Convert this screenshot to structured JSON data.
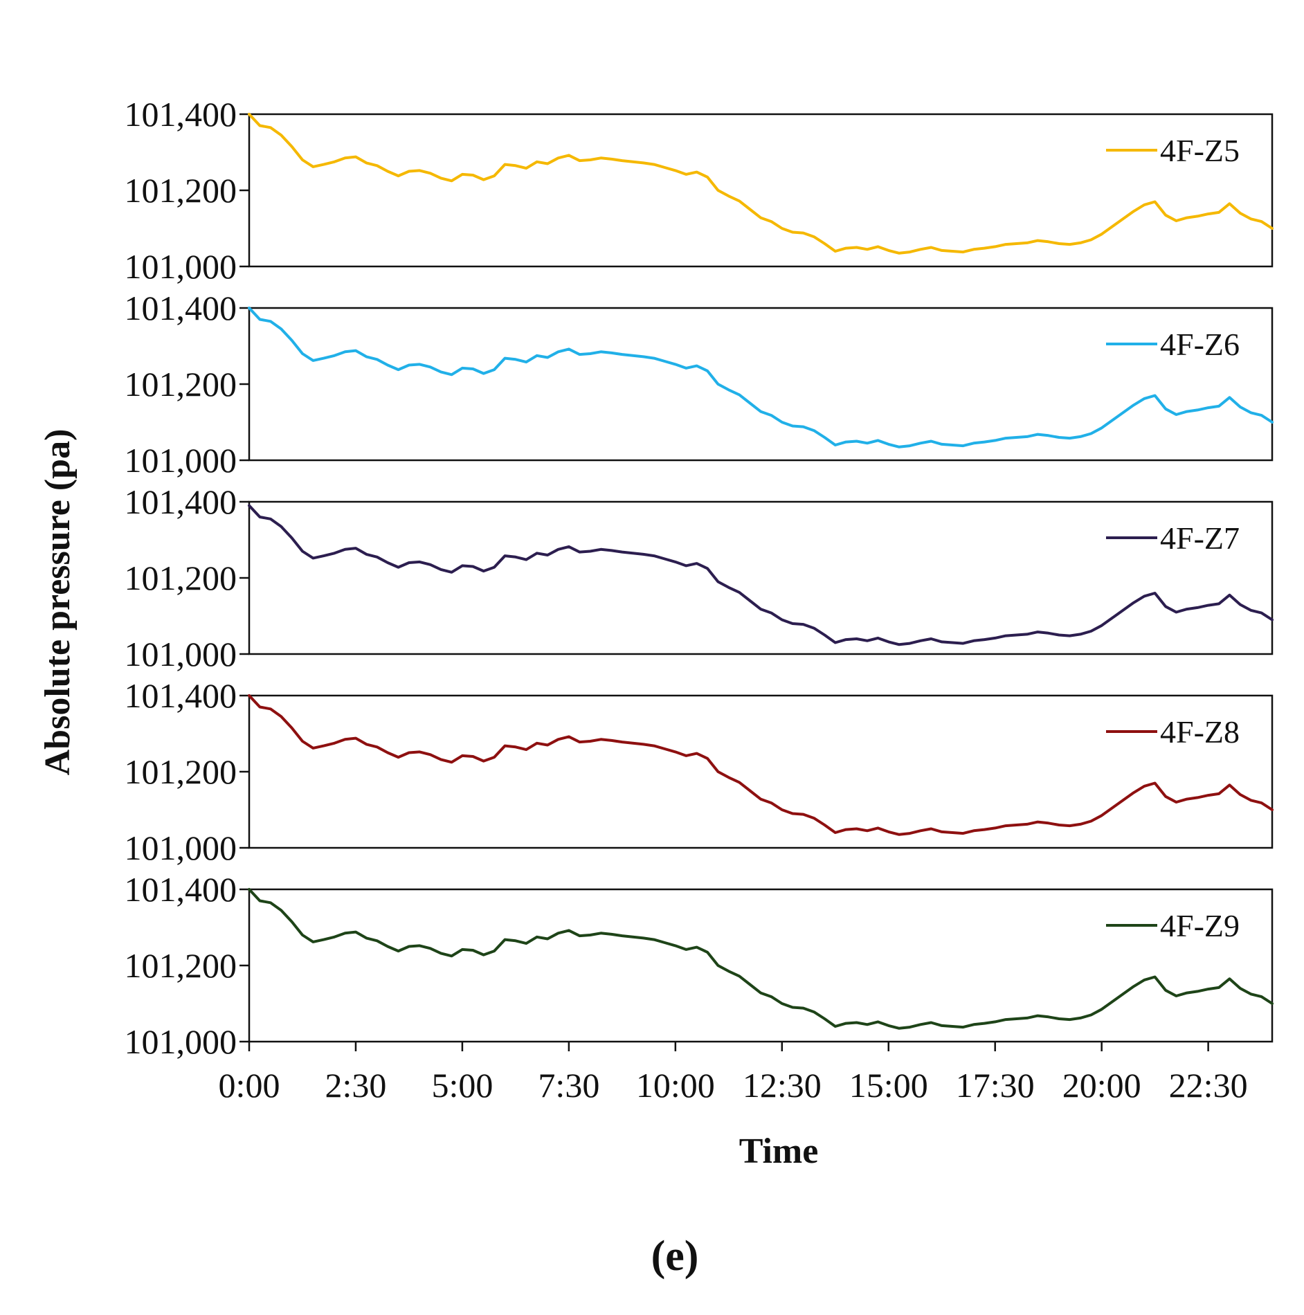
{
  "figure_label": "(e)",
  "chart_data": {
    "type": "line",
    "layout": "stacked-panels",
    "ylabel": "Absolute pressure (pa)",
    "xlabel": "Time",
    "x_unit": "hours",
    "xlim": [
      0,
      24
    ],
    "x_tick_values": [
      0,
      2.5,
      5,
      7.5,
      10,
      12.5,
      15,
      17.5,
      20,
      22.5
    ],
    "x_tick_labels": [
      "0:00",
      "2:30",
      "5:00",
      "7:30",
      "10:00",
      "12:30",
      "15:00",
      "17:30",
      "20:00",
      "22:30"
    ],
    "ylim": [
      101000,
      101400
    ],
    "y_tick_values": [
      101000,
      101200,
      101400
    ],
    "y_tick_labels": [
      "101,000",
      "101,200",
      "101,400"
    ],
    "legend_position": "top-right",
    "grid": false,
    "x": [
      0,
      0.25,
      0.5,
      0.75,
      1,
      1.25,
      1.5,
      1.75,
      2,
      2.25,
      2.5,
      2.75,
      3,
      3.25,
      3.5,
      3.75,
      4,
      4.25,
      4.5,
      4.75,
      5,
      5.25,
      5.5,
      5.75,
      6,
      6.25,
      6.5,
      6.75,
      7,
      7.25,
      7.5,
      7.75,
      8,
      8.25,
      8.5,
      8.75,
      9,
      9.25,
      9.5,
      9.75,
      10,
      10.25,
      10.5,
      10.75,
      11,
      11.25,
      11.5,
      11.75,
      12,
      12.25,
      12.5,
      12.75,
      13,
      13.25,
      13.5,
      13.75,
      14,
      14.25,
      14.5,
      14.75,
      15,
      15.25,
      15.5,
      15.75,
      16,
      16.25,
      16.5,
      16.75,
      17,
      17.25,
      17.5,
      17.75,
      18,
      18.25,
      18.5,
      18.75,
      19,
      19.25,
      19.5,
      19.75,
      20,
      20.25,
      20.5,
      20.75,
      21,
      21.25,
      21.5,
      21.75,
      22,
      22.25,
      22.5,
      22.75,
      23,
      23.25,
      23.5,
      23.75,
      24
    ],
    "series": [
      {
        "name": "4F-Z5",
        "color": "#F5B800",
        "values": [
          101400,
          101370,
          101365,
          101345,
          101315,
          101280,
          101262,
          101268,
          101275,
          101285,
          101288,
          101272,
          101265,
          101250,
          101238,
          101250,
          101252,
          101245,
          101232,
          101225,
          101242,
          101240,
          101228,
          101238,
          101268,
          101265,
          101258,
          101275,
          101270,
          101285,
          101292,
          101278,
          101280,
          101285,
          101282,
          101278,
          101275,
          101272,
          101268,
          101260,
          101252,
          101242,
          101248,
          101235,
          101200,
          101185,
          101172,
          101150,
          101128,
          101118,
          101100,
          101090,
          101088,
          101078,
          101060,
          101040,
          101048,
          101050,
          101045,
          101052,
          101042,
          101035,
          101038,
          101045,
          101050,
          101042,
          101040,
          101038,
          101045,
          101048,
          101052,
          101058,
          101060,
          101062,
          101068,
          101065,
          101060,
          101058,
          101062,
          101070,
          101085,
          101105,
          101125,
          101145,
          101162,
          101170,
          101135,
          101120,
          101128,
          101132,
          101138,
          101142,
          101165,
          101140,
          101125,
          101118,
          101100
        ]
      },
      {
        "name": "4F-Z6",
        "color": "#21B0E8",
        "values": [
          101400,
          101370,
          101365,
          101345,
          101315,
          101280,
          101262,
          101268,
          101275,
          101285,
          101288,
          101272,
          101265,
          101250,
          101238,
          101250,
          101252,
          101245,
          101232,
          101225,
          101242,
          101240,
          101228,
          101238,
          101268,
          101265,
          101258,
          101275,
          101270,
          101285,
          101292,
          101278,
          101280,
          101285,
          101282,
          101278,
          101275,
          101272,
          101268,
          101260,
          101252,
          101242,
          101248,
          101235,
          101200,
          101185,
          101172,
          101150,
          101128,
          101118,
          101100,
          101090,
          101088,
          101078,
          101060,
          101040,
          101048,
          101050,
          101045,
          101052,
          101042,
          101035,
          101038,
          101045,
          101050,
          101042,
          101040,
          101038,
          101045,
          101048,
          101052,
          101058,
          101060,
          101062,
          101068,
          101065,
          101060,
          101058,
          101062,
          101070,
          101085,
          101105,
          101125,
          101145,
          101162,
          101170,
          101135,
          101120,
          101128,
          101132,
          101138,
          101142,
          101165,
          101140,
          101125,
          101118,
          101100
        ]
      },
      {
        "name": "4F-Z7",
        "color": "#2C1E4F",
        "values": [
          101390,
          101360,
          101355,
          101335,
          101305,
          101270,
          101252,
          101258,
          101265,
          101275,
          101278,
          101262,
          101255,
          101240,
          101228,
          101240,
          101242,
          101235,
          101222,
          101215,
          101232,
          101230,
          101218,
          101228,
          101258,
          101255,
          101248,
          101265,
          101260,
          101275,
          101282,
          101268,
          101270,
          101275,
          101272,
          101268,
          101265,
          101262,
          101258,
          101250,
          101242,
          101232,
          101238,
          101225,
          101190,
          101175,
          101162,
          101140,
          101118,
          101108,
          101090,
          101080,
          101078,
          101068,
          101050,
          101030,
          101038,
          101040,
          101035,
          101042,
          101032,
          101025,
          101028,
          101035,
          101040,
          101032,
          101030,
          101028,
          101035,
          101038,
          101042,
          101048,
          101050,
          101052,
          101058,
          101055,
          101050,
          101048,
          101052,
          101060,
          101075,
          101095,
          101115,
          101135,
          101152,
          101160,
          101125,
          101110,
          101118,
          101122,
          101128,
          101132,
          101155,
          101130,
          101115,
          101108,
          101090
        ]
      },
      {
        "name": "4F-Z8",
        "color": "#8E1010",
        "values": [
          101400,
          101370,
          101365,
          101345,
          101315,
          101280,
          101262,
          101268,
          101275,
          101285,
          101288,
          101272,
          101265,
          101250,
          101238,
          101250,
          101252,
          101245,
          101232,
          101225,
          101242,
          101240,
          101228,
          101238,
          101268,
          101265,
          101258,
          101275,
          101270,
          101285,
          101292,
          101278,
          101280,
          101285,
          101282,
          101278,
          101275,
          101272,
          101268,
          101260,
          101252,
          101242,
          101248,
          101235,
          101200,
          101185,
          101172,
          101150,
          101128,
          101118,
          101100,
          101090,
          101088,
          101078,
          101060,
          101040,
          101048,
          101050,
          101045,
          101052,
          101042,
          101035,
          101038,
          101045,
          101050,
          101042,
          101040,
          101038,
          101045,
          101048,
          101052,
          101058,
          101060,
          101062,
          101068,
          101065,
          101060,
          101058,
          101062,
          101070,
          101085,
          101105,
          101125,
          101145,
          101162,
          101170,
          101135,
          101120,
          101128,
          101132,
          101138,
          101142,
          101165,
          101140,
          101125,
          101118,
          101100
        ]
      },
      {
        "name": "4F-Z9",
        "color": "#1E4418",
        "values": [
          101400,
          101370,
          101365,
          101345,
          101315,
          101280,
          101262,
          101268,
          101275,
          101285,
          101288,
          101272,
          101265,
          101250,
          101238,
          101250,
          101252,
          101245,
          101232,
          101225,
          101242,
          101240,
          101228,
          101238,
          101268,
          101265,
          101258,
          101275,
          101270,
          101285,
          101292,
          101278,
          101280,
          101285,
          101282,
          101278,
          101275,
          101272,
          101268,
          101260,
          101252,
          101242,
          101248,
          101235,
          101200,
          101185,
          101172,
          101150,
          101128,
          101118,
          101100,
          101090,
          101088,
          101078,
          101060,
          101040,
          101048,
          101050,
          101045,
          101052,
          101042,
          101035,
          101038,
          101045,
          101050,
          101042,
          101040,
          101038,
          101045,
          101048,
          101052,
          101058,
          101060,
          101062,
          101068,
          101065,
          101060,
          101058,
          101062,
          101070,
          101085,
          101105,
          101125,
          101145,
          101162,
          101170,
          101135,
          101120,
          101128,
          101132,
          101138,
          101142,
          101165,
          101140,
          101125,
          101118,
          101100
        ]
      }
    ]
  }
}
